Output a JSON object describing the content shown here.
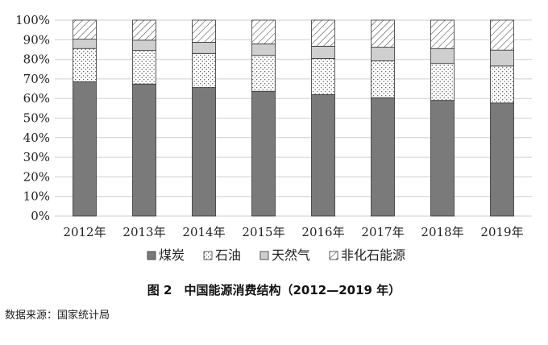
{
  "chart_data": {
    "type": "bar",
    "stacked": true,
    "percent": true,
    "categories": [
      "2012年",
      "2013年",
      "2014年",
      "2015年",
      "2016年",
      "2017年",
      "2018年",
      "2019年"
    ],
    "series": [
      {
        "name": "煤炭",
        "values": [
          68.5,
          67.4,
          65.6,
          63.7,
          62.0,
          60.4,
          59.0,
          57.7
        ],
        "color": "#7a7a7a",
        "pattern": "solid"
      },
      {
        "name": "石油",
        "values": [
          17.0,
          17.1,
          17.4,
          18.3,
          18.5,
          18.8,
          18.9,
          18.9
        ],
        "color": "#ffffff",
        "pattern": "dots"
      },
      {
        "name": "天然气",
        "values": [
          4.8,
          5.3,
          5.7,
          5.9,
          6.2,
          7.0,
          7.6,
          8.1
        ],
        "color": "#cfcfcf",
        "pattern": "solid"
      },
      {
        "name": "非化石能源",
        "values": [
          9.7,
          10.2,
          11.3,
          12.1,
          13.3,
          13.8,
          14.5,
          15.3
        ],
        "color": "#ffffff",
        "pattern": "hatch"
      }
    ],
    "y_ticks": [
      "0%",
      "10%",
      "20%",
      "30%",
      "40%",
      "50%",
      "60%",
      "70%",
      "80%",
      "90%",
      "100%"
    ],
    "ylim": [
      0,
      100
    ],
    "grid": true,
    "legend_position": "bottom",
    "title": "图 2　中国能源消费结构（2012—2019 年）"
  },
  "source": "数据来源：国家统计局"
}
